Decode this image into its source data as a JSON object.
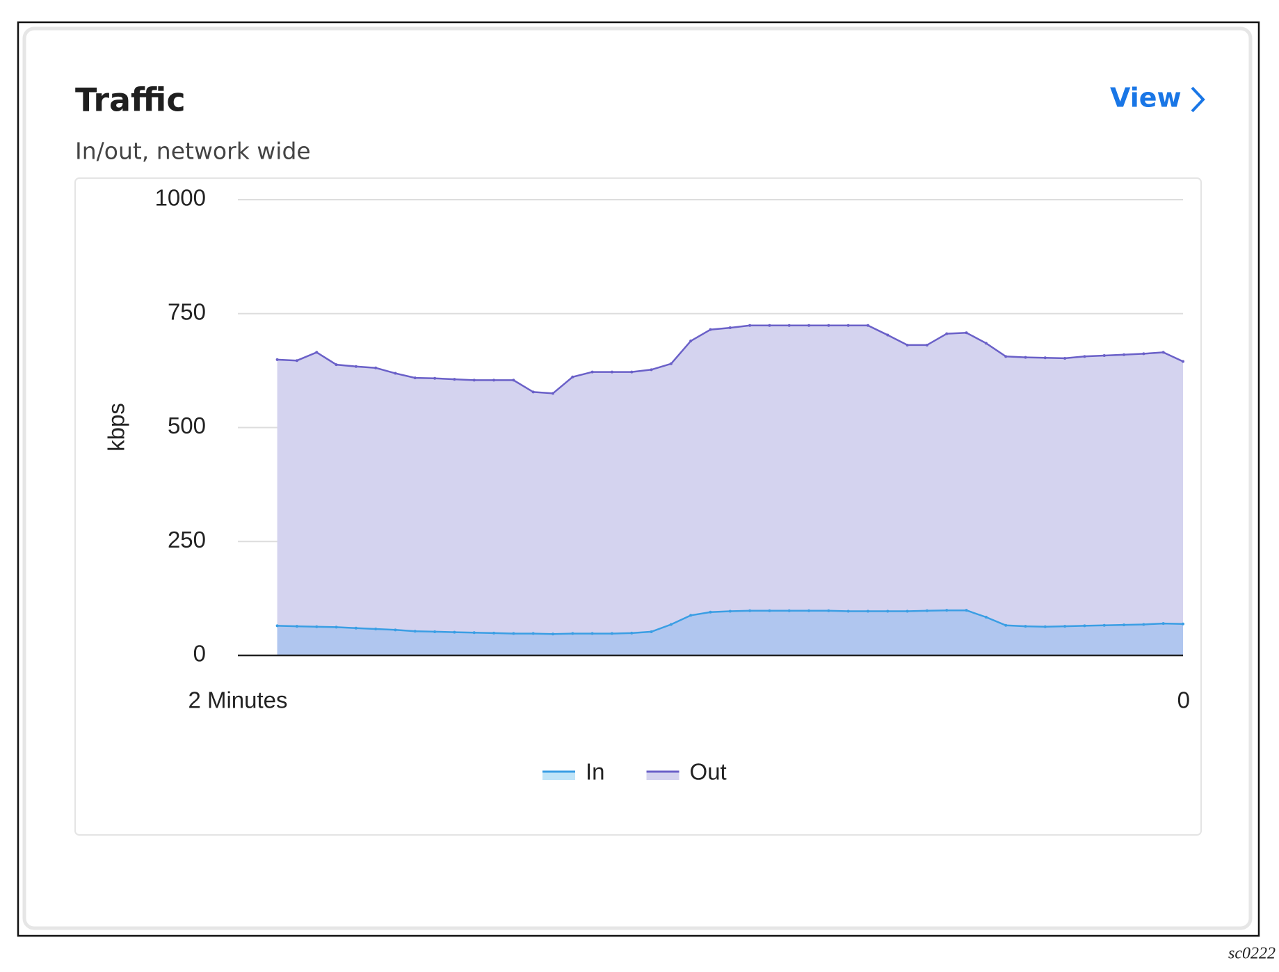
{
  "chart_data": {
    "type": "area",
    "title": "Traffic",
    "subtitle": "In/out, network wide",
    "y_label": "kbps",
    "x": [
      115,
      112.5,
      110,
      107.5,
      105,
      102.5,
      100,
      97.5,
      95,
      92.5,
      90,
      87.5,
      85,
      82.5,
      80,
      77.5,
      75,
      72.5,
      70,
      67.5,
      65,
      62.5,
      60,
      57.5,
      55,
      52.5,
      50,
      47.5,
      45,
      42.5,
      40,
      37.5,
      35,
      32.5,
      30,
      27.5,
      25,
      22.5,
      20,
      17.5,
      15,
      12.5,
      10,
      7.5,
      5,
      2.5,
      0
    ],
    "series": [
      {
        "name": "In",
        "color": "#3a9ee4",
        "fill": "#a9c3ef",
        "legend_fill": "#bfe4f8",
        "values": [
          65,
          64,
          63,
          62,
          60,
          58,
          56,
          53,
          52,
          51,
          50,
          49,
          48,
          48,
          47,
          48,
          48,
          48,
          49,
          52,
          68,
          88,
          95,
          97,
          98,
          98,
          98,
          98,
          98,
          97,
          97,
          97,
          97,
          98,
          99,
          99,
          84,
          66,
          64,
          63,
          64,
          65,
          66,
          67,
          68,
          70,
          69
        ]
      },
      {
        "name": "Out",
        "color": "#6a60c8",
        "fill": "#d4d3ef",
        "legend_fill": "#d4d3ef",
        "values": [
          649,
          647,
          665,
          638,
          634,
          631,
          619,
          609,
          608,
          606,
          604,
          604,
          604,
          578,
          575,
          611,
          622,
          622,
          622,
          627,
          640,
          690,
          715,
          719,
          724,
          724,
          724,
          724,
          724,
          724,
          724,
          703,
          681,
          681,
          706,
          708,
          685,
          656,
          654,
          653,
          652,
          656,
          658,
          660,
          662,
          665,
          645
        ]
      }
    ],
    "xlim": [
      120,
      0
    ],
    "xticks": [
      {
        "value": 120,
        "label": "2 Minutes"
      },
      0
    ],
    "ylim": [
      0,
      1000
    ],
    "yticks": [
      0,
      250,
      500,
      750,
      1000
    ],
    "grid": true
  },
  "link": "View",
  "footnote": "sc0222"
}
